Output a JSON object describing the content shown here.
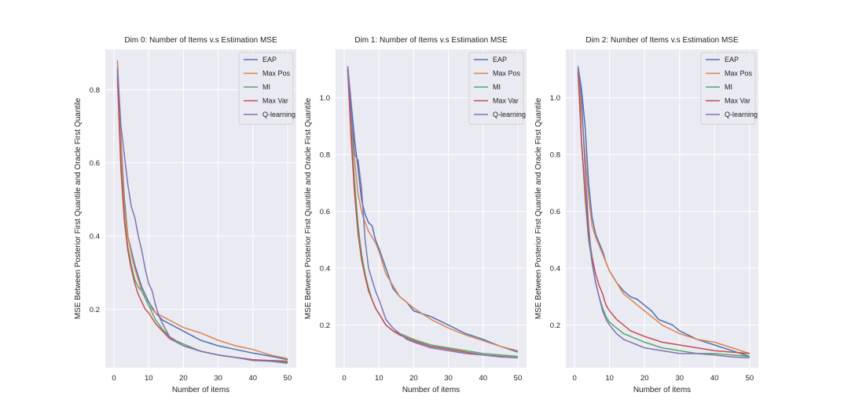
{
  "chart_data": [
    {
      "type": "line",
      "title": "Dim 0: Number of Items v.s Estimation MSE",
      "xlabel": "Number of items",
      "ylabel": "MSE Between Posterior First Quantile and Oracle First Quantile",
      "xlim": [
        -2.5,
        52.5
      ],
      "ylim": [
        0.04,
        0.91
      ],
      "xticks": [
        0,
        10,
        20,
        30,
        40,
        50
      ],
      "yticks": [
        0.2,
        0.4,
        0.6,
        0.8
      ],
      "legend": "top-right",
      "grid": true,
      "series": [
        {
          "name": "EAP",
          "color": "#4c72b0",
          "x": [
            1,
            2,
            3,
            4,
            5,
            6,
            7,
            8,
            9,
            10,
            12,
            14,
            16,
            18,
            20,
            25,
            30,
            35,
            40,
            45,
            50
          ],
          "y": [
            0.84,
            0.66,
            0.5,
            0.4,
            0.36,
            0.32,
            0.29,
            0.26,
            0.24,
            0.22,
            0.19,
            0.17,
            0.16,
            0.15,
            0.14,
            0.115,
            0.1,
            0.09,
            0.08,
            0.072,
            0.062
          ]
        },
        {
          "name": "Max Pos",
          "color": "#dd8452",
          "x": [
            1,
            2,
            3,
            4,
            5,
            6,
            7,
            8,
            9,
            10,
            12,
            14,
            16,
            18,
            20,
            25,
            30,
            35,
            40,
            45,
            50
          ],
          "y": [
            0.88,
            0.65,
            0.48,
            0.4,
            0.35,
            0.31,
            0.28,
            0.25,
            0.23,
            0.21,
            0.19,
            0.18,
            0.17,
            0.16,
            0.15,
            0.135,
            0.115,
            0.1,
            0.09,
            0.075,
            0.065
          ]
        },
        {
          "name": "MI",
          "color": "#55a868",
          "x": [
            1,
            2,
            3,
            4,
            5,
            6,
            7,
            8,
            9,
            10,
            12,
            14,
            16,
            18,
            20,
            25,
            30,
            35,
            40,
            45,
            50
          ],
          "y": [
            0.85,
            0.6,
            0.45,
            0.37,
            0.32,
            0.28,
            0.26,
            0.25,
            0.23,
            0.21,
            0.17,
            0.145,
            0.125,
            0.113,
            0.105,
            0.085,
            0.075,
            0.068,
            0.062,
            0.058,
            0.052
          ]
        },
        {
          "name": "Max Var",
          "color": "#c44e52",
          "x": [
            1,
            2,
            3,
            4,
            5,
            6,
            7,
            8,
            9,
            10,
            12,
            14,
            16,
            18,
            20,
            25,
            30,
            35,
            40,
            45,
            50
          ],
          "y": [
            0.83,
            0.58,
            0.44,
            0.36,
            0.31,
            0.27,
            0.24,
            0.22,
            0.2,
            0.19,
            0.16,
            0.14,
            0.12,
            0.11,
            0.1,
            0.085,
            0.075,
            0.068,
            0.062,
            0.06,
            0.058
          ]
        },
        {
          "name": "Q-learning",
          "color": "#8172b2",
          "x": [
            1,
            2,
            3,
            4,
            5,
            6,
            7,
            8,
            9,
            10,
            11,
            12,
            13,
            14,
            16,
            18,
            20,
            25,
            30,
            35,
            40,
            45,
            50
          ],
          "y": [
            0.86,
            0.7,
            0.62,
            0.54,
            0.48,
            0.45,
            0.4,
            0.36,
            0.31,
            0.27,
            0.25,
            0.21,
            0.18,
            0.16,
            0.125,
            0.11,
            0.1,
            0.085,
            0.075,
            0.068,
            0.06,
            0.058,
            0.055
          ]
        }
      ]
    },
    {
      "type": "line",
      "title": "Dim 1: Number of Items v.s Estimation MSE",
      "xlabel": "Number of items",
      "ylabel": "MSE Between Posterior First Quantile and Oracle First Quantile",
      "xlim": [
        -2.5,
        52.5
      ],
      "ylim": [
        0.05,
        1.17
      ],
      "xticks": [
        0,
        10,
        20,
        30,
        40,
        50
      ],
      "yticks": [
        0.2,
        0.4,
        0.6,
        0.8,
        1.0
      ],
      "legend": "top-right",
      "grid": true,
      "series": [
        {
          "name": "EAP",
          "color": "#4c72b0",
          "x": [
            1,
            2,
            3,
            4,
            5,
            6,
            7,
            8,
            9,
            10,
            12,
            14,
            16,
            18,
            20,
            25,
            30,
            35,
            40,
            45,
            50
          ],
          "y": [
            1.11,
            0.98,
            0.85,
            0.75,
            0.64,
            0.59,
            0.56,
            0.55,
            0.5,
            0.47,
            0.4,
            0.33,
            0.3,
            0.28,
            0.25,
            0.23,
            0.2,
            0.17,
            0.15,
            0.125,
            0.105
          ]
        },
        {
          "name": "Max Pos",
          "color": "#dd8452",
          "x": [
            1,
            2,
            3,
            4,
            5,
            6,
            7,
            8,
            9,
            10,
            12,
            14,
            16,
            18,
            20,
            25,
            30,
            35,
            40,
            45,
            50
          ],
          "y": [
            1.1,
            0.9,
            0.78,
            0.66,
            0.6,
            0.56,
            0.53,
            0.51,
            0.49,
            0.46,
            0.38,
            0.34,
            0.3,
            0.28,
            0.26,
            0.22,
            0.19,
            0.165,
            0.145,
            0.125,
            0.11
          ]
        },
        {
          "name": "MI",
          "color": "#55a868",
          "x": [
            1,
            2,
            3,
            4,
            5,
            6,
            7,
            8,
            9,
            10,
            12,
            14,
            16,
            18,
            20,
            25,
            30,
            35,
            40,
            45,
            50
          ],
          "y": [
            1.1,
            0.88,
            0.7,
            0.55,
            0.45,
            0.38,
            0.33,
            0.29,
            0.26,
            0.24,
            0.2,
            0.18,
            0.17,
            0.16,
            0.15,
            0.13,
            0.12,
            0.11,
            0.1,
            0.095,
            0.09
          ]
        },
        {
          "name": "Max Var",
          "color": "#c44e52",
          "x": [
            1,
            2,
            3,
            4,
            5,
            6,
            7,
            8,
            9,
            10,
            12,
            14,
            16,
            18,
            20,
            25,
            30,
            35,
            40,
            45,
            50
          ],
          "y": [
            1.1,
            0.85,
            0.66,
            0.52,
            0.43,
            0.37,
            0.32,
            0.29,
            0.26,
            0.24,
            0.2,
            0.18,
            0.165,
            0.155,
            0.145,
            0.125,
            0.115,
            0.105,
            0.095,
            0.09,
            0.085
          ]
        },
        {
          "name": "Q-learning",
          "color": "#8172b2",
          "x": [
            1,
            2,
            3,
            4,
            5,
            6,
            7,
            8,
            9,
            10,
            12,
            14,
            16,
            18,
            20,
            25,
            30,
            35,
            40,
            45,
            50
          ],
          "y": [
            1.11,
            0.95,
            0.8,
            0.78,
            0.68,
            0.5,
            0.4,
            0.36,
            0.32,
            0.29,
            0.22,
            0.19,
            0.17,
            0.15,
            0.14,
            0.12,
            0.11,
            0.1,
            0.095,
            0.088,
            0.085
          ]
        }
      ]
    },
    {
      "type": "line",
      "title": "Dim 2: Number of Items v.s Estimation MSE",
      "xlabel": "Number of items",
      "ylabel": "MSE Between Posterior First Quantile and Oracle First Quantile",
      "xlim": [
        -2.5,
        52.5
      ],
      "ylim": [
        0.05,
        1.17
      ],
      "xticks": [
        0,
        10,
        20,
        30,
        40,
        50
      ],
      "yticks": [
        0.2,
        0.4,
        0.6,
        0.8,
        1.0
      ],
      "legend": "top-right",
      "grid": true,
      "series": [
        {
          "name": "EAP",
          "color": "#4c72b0",
          "x": [
            1,
            2,
            3,
            4,
            5,
            6,
            7,
            8,
            9,
            10,
            12,
            14,
            16,
            18,
            20,
            22,
            24,
            26,
            28,
            30,
            35,
            40,
            45,
            50
          ],
          "y": [
            1.11,
            1.03,
            0.9,
            0.7,
            0.58,
            0.52,
            0.49,
            0.46,
            0.42,
            0.39,
            0.35,
            0.32,
            0.3,
            0.29,
            0.27,
            0.25,
            0.22,
            0.21,
            0.2,
            0.18,
            0.15,
            0.13,
            0.11,
            0.09
          ]
        },
        {
          "name": "Max Pos",
          "color": "#dd8452",
          "x": [
            1,
            2,
            3,
            4,
            5,
            6,
            7,
            8,
            9,
            10,
            12,
            14,
            16,
            18,
            20,
            25,
            30,
            35,
            40,
            45,
            50
          ],
          "y": [
            1.1,
            0.95,
            0.8,
            0.65,
            0.55,
            0.51,
            0.48,
            0.45,
            0.42,
            0.39,
            0.35,
            0.31,
            0.29,
            0.27,
            0.25,
            0.2,
            0.17,
            0.15,
            0.14,
            0.12,
            0.1
          ]
        },
        {
          "name": "MI",
          "color": "#55a868",
          "x": [
            1,
            2,
            3,
            4,
            5,
            6,
            7,
            8,
            9,
            10,
            12,
            14,
            16,
            18,
            20,
            25,
            30,
            35,
            40,
            45,
            50
          ],
          "y": [
            1.1,
            0.85,
            0.65,
            0.5,
            0.42,
            0.35,
            0.3,
            0.26,
            0.23,
            0.21,
            0.19,
            0.17,
            0.16,
            0.15,
            0.14,
            0.12,
            0.11,
            0.1,
            0.1,
            0.095,
            0.09
          ]
        },
        {
          "name": "Max Var",
          "color": "#c44e52",
          "x": [
            1,
            2,
            3,
            4,
            5,
            6,
            7,
            8,
            9,
            10,
            12,
            14,
            16,
            18,
            20,
            25,
            30,
            35,
            40,
            45,
            50
          ],
          "y": [
            1.09,
            0.84,
            0.67,
            0.52,
            0.44,
            0.38,
            0.34,
            0.31,
            0.27,
            0.25,
            0.22,
            0.2,
            0.18,
            0.17,
            0.16,
            0.14,
            0.13,
            0.12,
            0.11,
            0.105,
            0.1
          ]
        },
        {
          "name": "Q-learning",
          "color": "#8172b2",
          "x": [
            1,
            2,
            3,
            4,
            5,
            6,
            7,
            8,
            9,
            10,
            12,
            14,
            16,
            18,
            20,
            25,
            30,
            35,
            40,
            45,
            50
          ],
          "y": [
            1.11,
            1.0,
            0.75,
            0.55,
            0.42,
            0.35,
            0.3,
            0.25,
            0.22,
            0.2,
            0.17,
            0.15,
            0.14,
            0.13,
            0.12,
            0.11,
            0.1,
            0.1,
            0.095,
            0.088,
            0.085
          ]
        }
      ]
    }
  ]
}
